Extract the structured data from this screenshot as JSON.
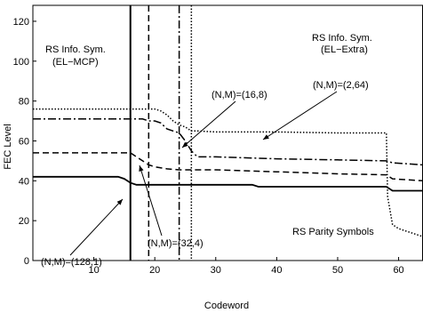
{
  "chart_data": {
    "type": "line",
    "title": "",
    "xlabel": "Codeword",
    "ylabel": "FEC Level",
    "xlim": [
      0,
      64
    ],
    "ylim": [
      0,
      128
    ],
    "xticks": [
      10,
      20,
      30,
      40,
      50,
      60
    ],
    "yticks": [
      0,
      20,
      40,
      60,
      80,
      100,
      120
    ],
    "grid": false,
    "series": [
      {
        "name": "(N,M)=(128,1)",
        "style": "solid",
        "x": [
          0,
          14,
          15,
          16,
          17,
          20,
          30,
          36,
          37,
          40,
          50,
          58,
          59,
          64
        ],
        "y": [
          42,
          42,
          41,
          39,
          38,
          38,
          38,
          38,
          37,
          37,
          37,
          37,
          35,
          35
        ]
      },
      {
        "name": "(N,M)=(32,4)",
        "style": "dashed",
        "x": [
          0,
          16,
          17,
          18,
          19,
          20,
          22,
          24,
          30,
          40,
          50,
          58,
          59,
          64
        ],
        "y": [
          54,
          54,
          52,
          50,
          48,
          47,
          46,
          45.5,
          45.5,
          44.5,
          43.5,
          43,
          41,
          40
        ]
      },
      {
        "name": "(N,M)=(16,8)",
        "style": "dashdot",
        "x": [
          0,
          18,
          19,
          20,
          21,
          22,
          23,
          24,
          25,
          26,
          27,
          30,
          40,
          50,
          58,
          59,
          64
        ],
        "y": [
          71,
          71,
          70,
          70,
          69,
          66,
          65,
          64,
          60,
          55,
          52,
          52,
          51,
          50.5,
          50,
          49,
          48
        ]
      },
      {
        "name": "(N,M)=(2,64)",
        "style": "dotted",
        "x": [
          0,
          1,
          20,
          21,
          22,
          23,
          24,
          25,
          26,
          27,
          30,
          40,
          50,
          57,
          58,
          58.2,
          59,
          60,
          61,
          62,
          63,
          64
        ],
        "y": [
          76,
          76,
          76,
          75,
          73,
          70,
          68,
          67,
          65,
          65,
          64.5,
          64.5,
          64,
          64,
          64,
          32,
          18,
          16,
          15,
          14,
          13,
          12
        ]
      }
    ],
    "vertical_lines": [
      {
        "x": 16,
        "style": "solid"
      },
      {
        "x": 19,
        "style": "dashed"
      },
      {
        "x": 24,
        "style": "dashdot"
      },
      {
        "x": 26,
        "style": "dotted"
      }
    ],
    "annotations": {
      "mcp_line1": "RS Info. Sym.",
      "mcp_line2": "(EL−MCP)",
      "extra_line1": "RS Info. Sym.",
      "extra_line2": "(EL−Extra)",
      "label_2_64": "(N,M)=(2,64)",
      "label_16_8": "(N,M)=(16,8)",
      "label_32_4": "(N,M)=(32,4)",
      "label_128_1": "(N,M)=(128,1)",
      "parity": "RS Parity Symbols"
    }
  }
}
